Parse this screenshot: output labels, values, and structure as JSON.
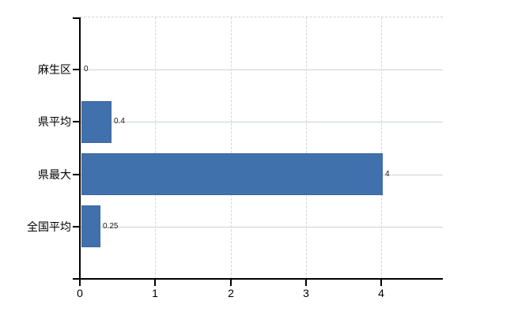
{
  "chart_data": {
    "type": "bar",
    "orientation": "horizontal",
    "title": "",
    "categories": [
      "麻生区",
      "県平均",
      "県最大",
      "全国平均"
    ],
    "values": [
      0,
      0.4,
      4,
      0.25
    ],
    "value_labels": [
      "0",
      "0.4",
      "4",
      "0.25"
    ],
    "xlabel": "",
    "ylabel": "",
    "xlim": [
      0,
      4.8
    ],
    "xticks": [
      0,
      1,
      2,
      3,
      4
    ],
    "grid": true,
    "legend": false,
    "colors": {
      "bar_fill": "#4171ad",
      "bar_edge": "#3a67a2",
      "h_gridline": "#ccd4cd",
      "v_gridline": "#d6d6d6",
      "plot_border": "#d0d0d0",
      "axis": "#000000",
      "text": "#000000"
    }
  }
}
